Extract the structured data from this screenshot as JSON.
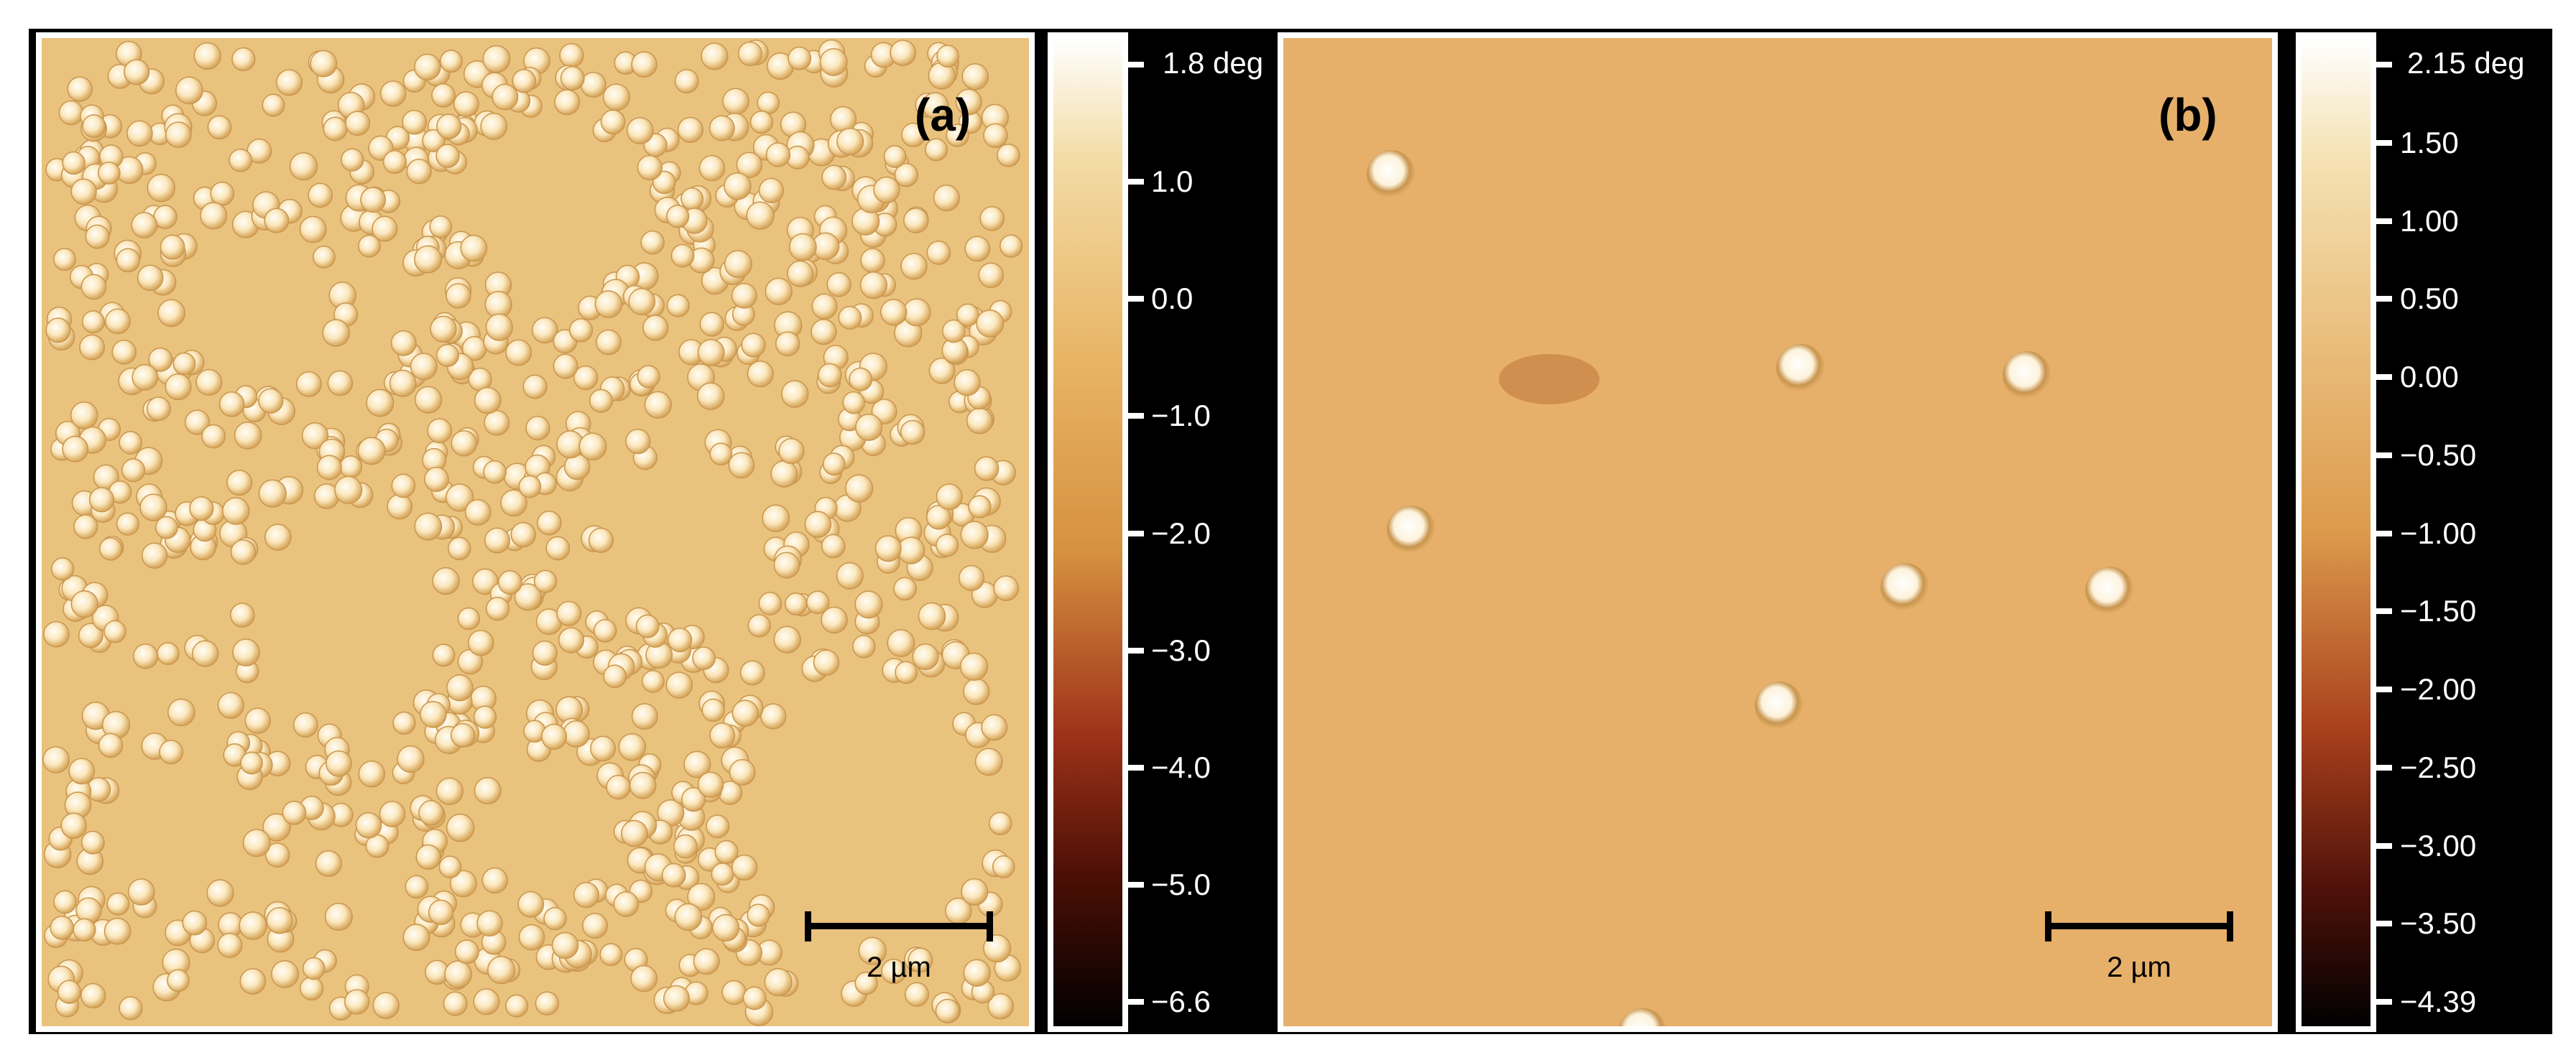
{
  "panel_a": {
    "label": "(a)",
    "scale_bar": "2 µm",
    "colorbar": {
      "max_label": "1.8 deg",
      "ticks": [
        "1.0",
        "0.0",
        "−1.0",
        "−2.0",
        "−3.0",
        "−4.0",
        "−5.0",
        "−6.6"
      ]
    }
  },
  "panel_b": {
    "label": "(b)",
    "scale_bar": "2 µm",
    "colorbar": {
      "max_label": "2.15 deg",
      "ticks": [
        "1.50",
        "1.00",
        "0.50",
        "0.00",
        "−0.50",
        "−1.00",
        "−1.50",
        "−2.00",
        "−2.50",
        "−3.00",
        "−3.50",
        "−4.39"
      ]
    }
  },
  "colors": {
    "background_a": "#e9c27e",
    "background_b": "#e6b06a",
    "particle": "#fff6e0",
    "colormap_top": "#ffffff",
    "colormap_mid": "#e8b566",
    "colormap_low": "#a0341a",
    "colormap_bottom": "#000000"
  }
}
